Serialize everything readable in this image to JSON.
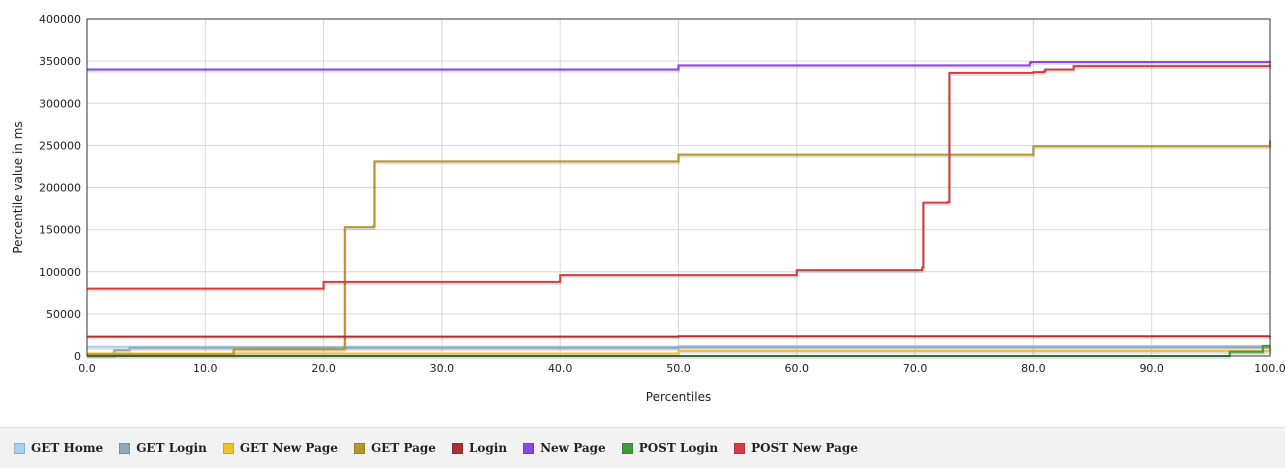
{
  "chart_data": {
    "type": "line",
    "xlabel": "Percentiles",
    "ylabel": "Percentile value in ms",
    "xlim": [
      0,
      100
    ],
    "ylim": [
      0,
      400000
    ],
    "x_ticks": [
      "0.0",
      "10.0",
      "20.0",
      "30.0",
      "40.0",
      "50.0",
      "60.0",
      "70.0",
      "80.0",
      "90.0",
      "100.0"
    ],
    "y_ticks": [
      "0",
      "50000",
      "100000",
      "150000",
      "200000",
      "250000",
      "300000",
      "350000",
      "400000"
    ],
    "grid": true,
    "legend_position": "bottom",
    "series": [
      {
        "name": "GET Home",
        "color": "#a6d3f2",
        "points": [
          [
            0,
            11000
          ],
          [
            50,
            12000
          ],
          [
            100,
            13000
          ]
        ]
      },
      {
        "name": "GET Login",
        "color": "#8fa9c4",
        "points": [
          [
            0,
            1000
          ],
          [
            2.2,
            1000
          ],
          [
            2.3,
            7000
          ],
          [
            3.5,
            7000
          ],
          [
            3.6,
            10000
          ],
          [
            50,
            10500
          ],
          [
            100,
            11000
          ]
        ]
      },
      {
        "name": "GET New Page",
        "color": "#f2c12e",
        "points": [
          [
            0,
            3000
          ],
          [
            50,
            6000
          ],
          [
            100,
            9000
          ]
        ]
      },
      {
        "name": "GET Page",
        "color": "#b8962e",
        "points": [
          [
            0,
            2000
          ],
          [
            12.3,
            2000
          ],
          [
            12.4,
            8000
          ],
          [
            21.7,
            9000
          ],
          [
            21.8,
            153000
          ],
          [
            24.2,
            154000
          ],
          [
            24.3,
            231000
          ],
          [
            50,
            239000
          ],
          [
            80,
            249000
          ],
          [
            100,
            256000
          ]
        ]
      },
      {
        "name": "Login",
        "color": "#a83232",
        "points": [
          [
            0,
            23000
          ],
          [
            50,
            23500
          ],
          [
            96,
            23500
          ],
          [
            100,
            24000
          ]
        ]
      },
      {
        "name": "New Page",
        "color": "#8f45e8",
        "points": [
          [
            0,
            340000
          ],
          [
            50,
            345000
          ],
          [
            79.7,
            348000
          ],
          [
            79.8,
            349000
          ],
          [
            100,
            350000
          ]
        ]
      },
      {
        "name": "POST Login",
        "color": "#3e9e3e",
        "points": [
          [
            0,
            0
          ],
          [
            96.5,
            0
          ],
          [
            96.6,
            5000
          ],
          [
            99.3,
            5000
          ],
          [
            99.4,
            12000
          ],
          [
            100,
            12000
          ]
        ]
      },
      {
        "name": "POST New Page",
        "color": "#d04040",
        "points": [
          [
            0,
            80000
          ],
          [
            20,
            88000
          ],
          [
            40,
            96000
          ],
          [
            60,
            102000
          ],
          [
            70.6,
            105000
          ],
          [
            70.7,
            182000
          ],
          [
            72.8,
            183000
          ],
          [
            72.9,
            336000
          ],
          [
            80,
            337000
          ],
          [
            80.9,
            338000
          ],
          [
            81,
            340000
          ],
          [
            83.3,
            340000
          ],
          [
            83.4,
            344000
          ],
          [
            100,
            346000
          ]
        ]
      }
    ]
  }
}
